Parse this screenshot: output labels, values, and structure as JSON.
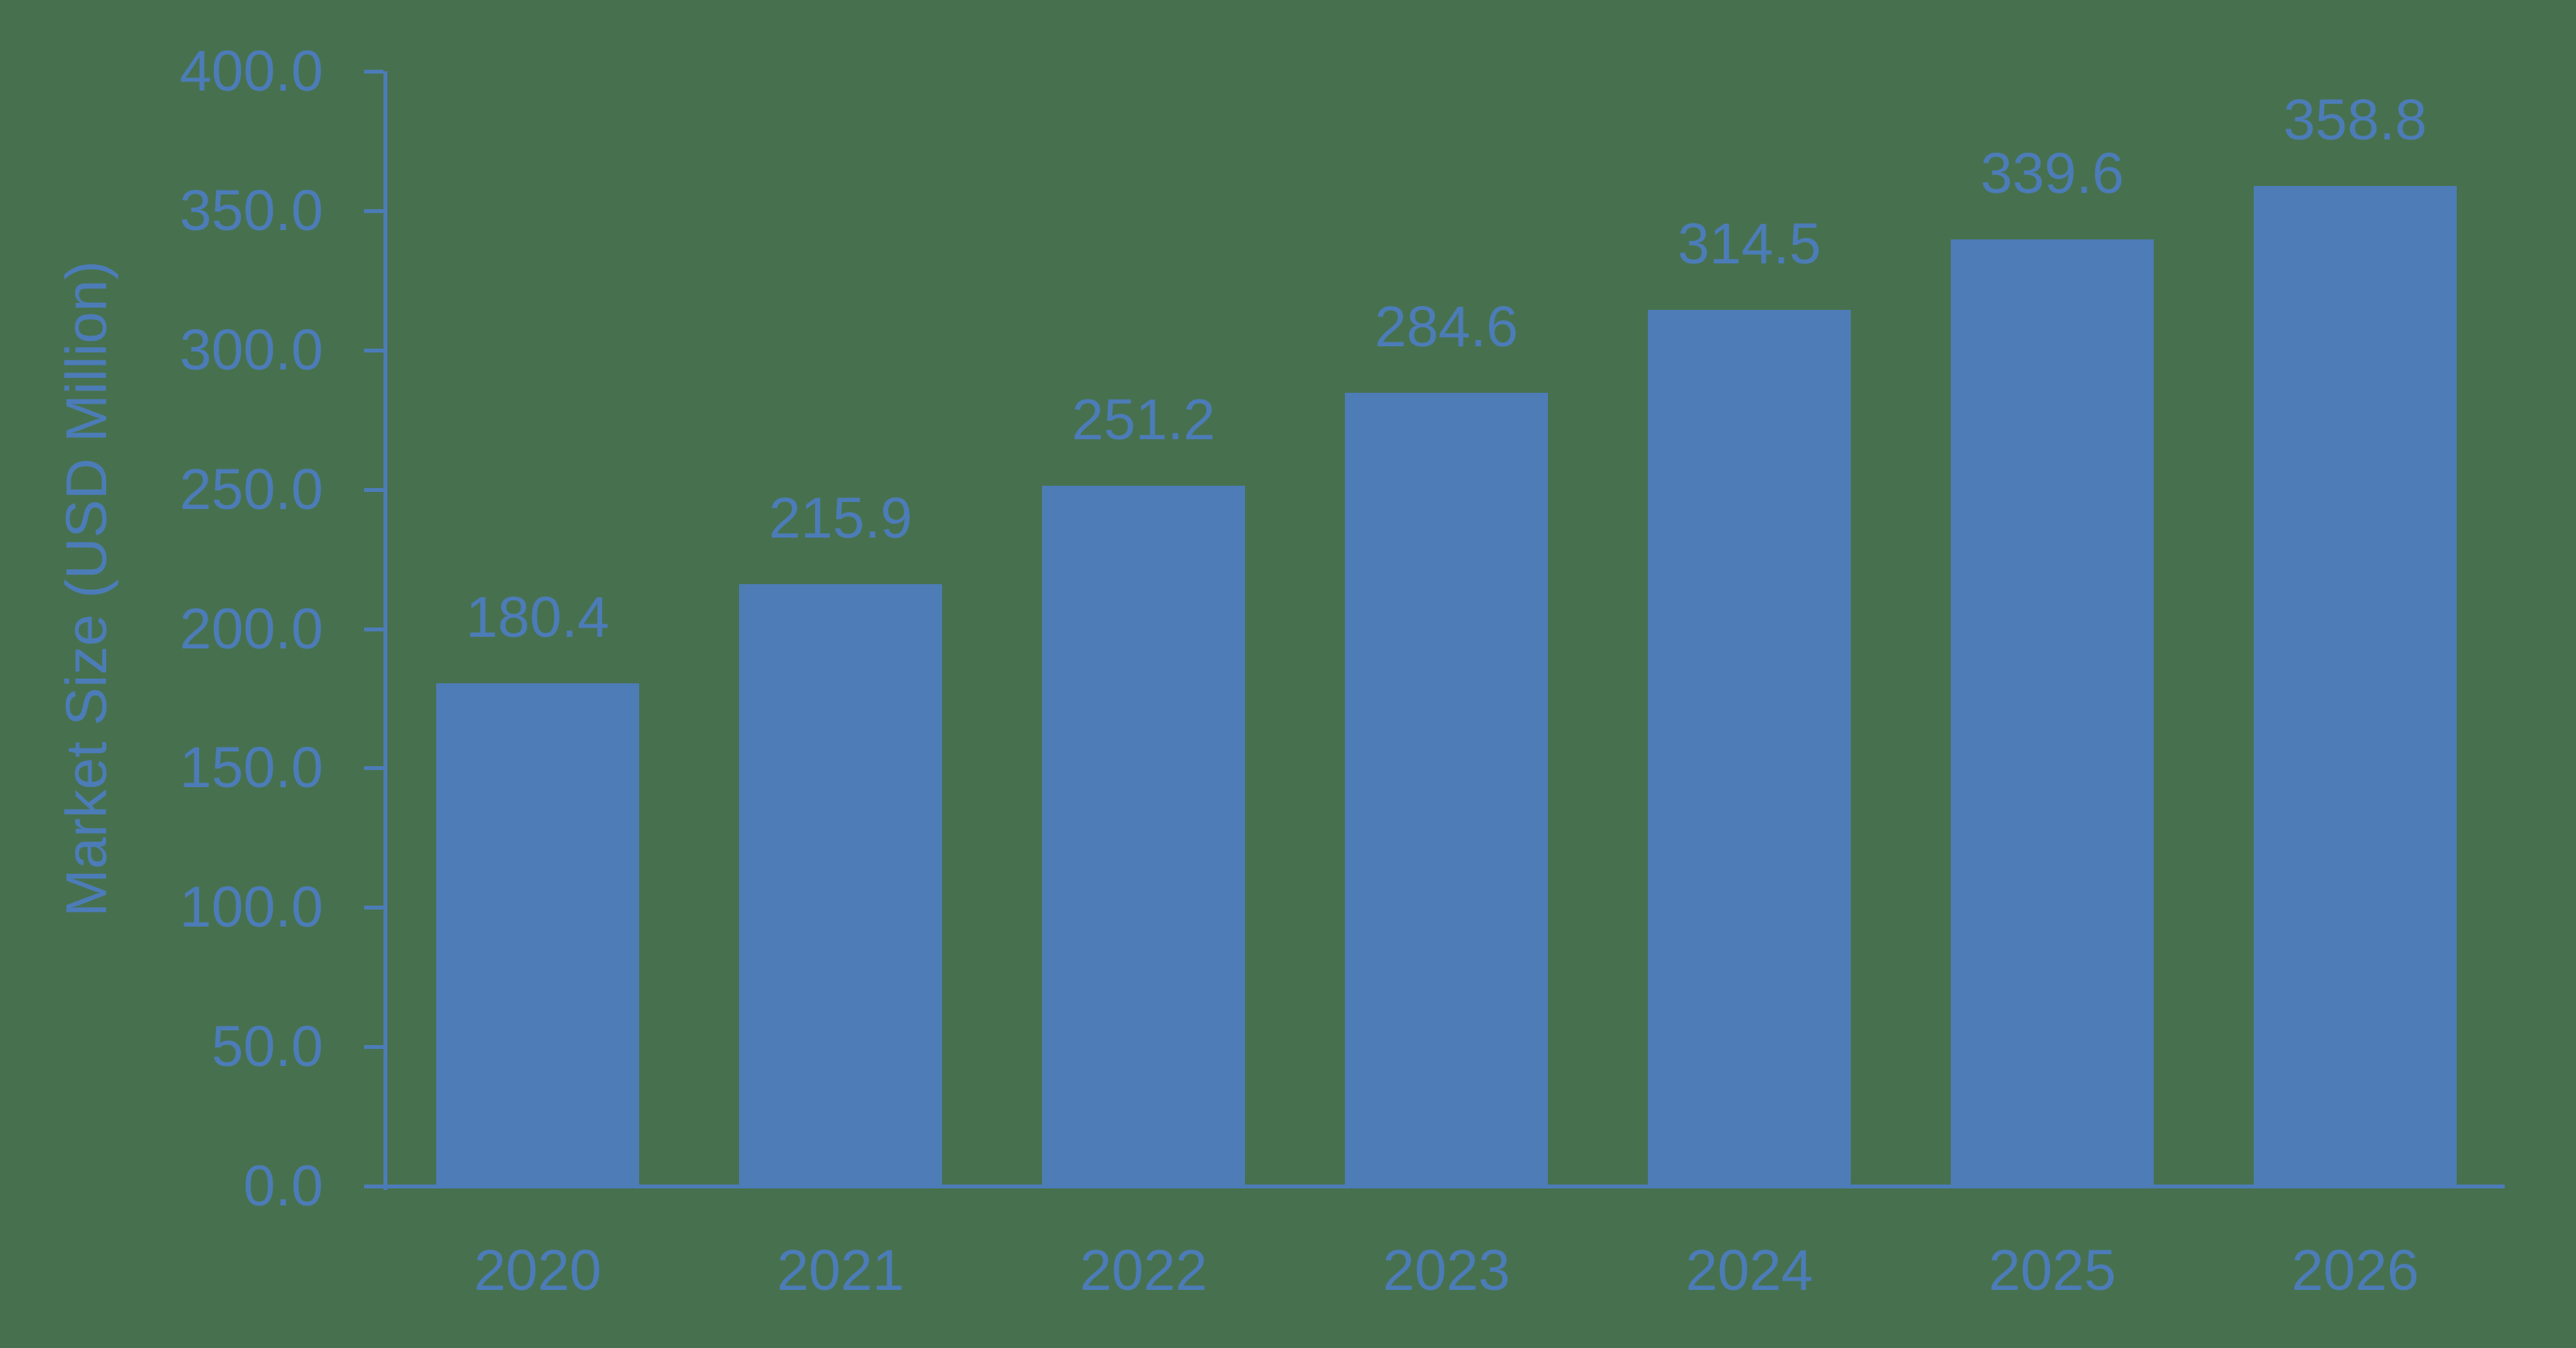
{
  "chart_data": {
    "type": "bar",
    "categories": [
      "2020",
      "2021",
      "2022",
      "2023",
      "2024",
      "2025",
      "2026"
    ],
    "values": [
      180.4,
      215.9,
      251.2,
      284.6,
      314.5,
      339.6,
      358.8
    ],
    "value_labels": [
      "180.4",
      "215.9",
      "251.2",
      "284.6",
      "314.5",
      "339.6",
      "358.8"
    ],
    "title": "",
    "xlabel": "",
    "ylabel": "Market Size (USD Million)",
    "ylim": [
      0,
      400
    ],
    "ytick_step": 50,
    "ytick_labels": [
      "0.0",
      "50.0",
      "100.0",
      "150.0",
      "200.0",
      "250.0",
      "300.0",
      "350.0",
      "400.0"
    ],
    "grid": "off",
    "legend": "none",
    "bar_value_labels_shown": true,
    "colors": {
      "background": "#47714E",
      "bar": "#4D7CB6",
      "text": "#4C7CB8",
      "axis": "#4C7CB8"
    }
  }
}
